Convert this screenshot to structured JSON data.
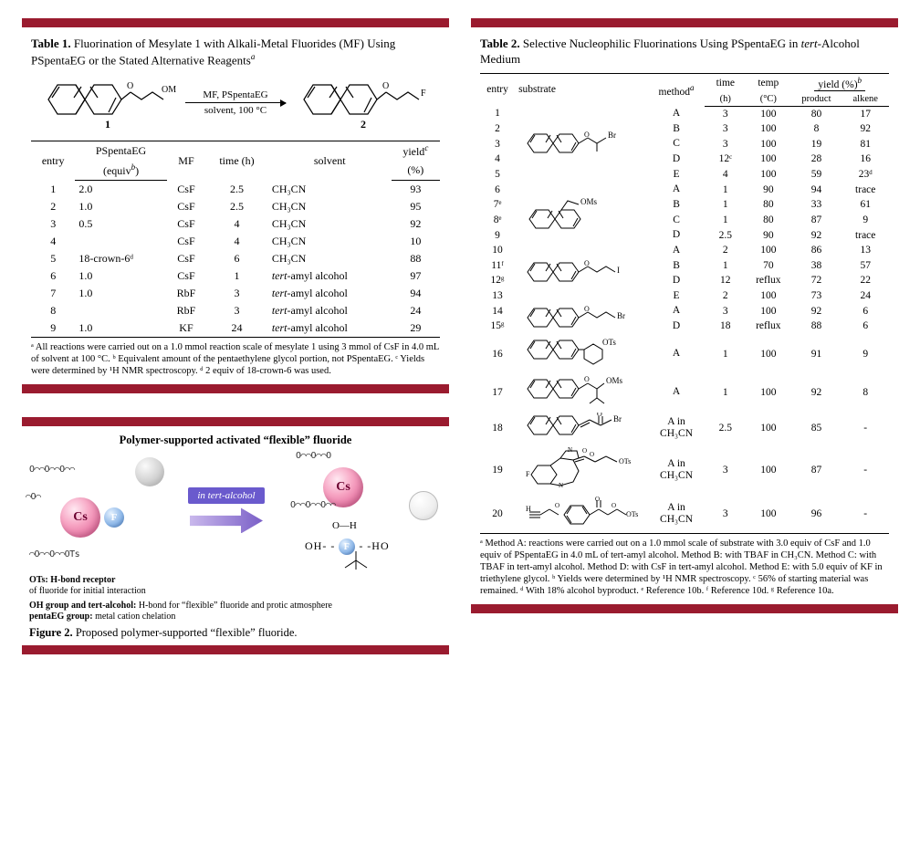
{
  "colors": {
    "panel_border": "#9a1b2f",
    "background": "#ffffff",
    "text": "#000000",
    "arrow_gradient_start": "#c9b8ec",
    "arrow_gradient_end": "#7a5fc7",
    "pill_bg": "#6a5acd",
    "cs_gradient": [
      "#ffe9f2",
      "#f7a6c4",
      "#d84a86"
    ],
    "f_gradient": [
      "#e6f2ff",
      "#8fb8e8",
      "#2e5c9a"
    ]
  },
  "table1": {
    "title_prefix": "Table 1.",
    "title_body": " Fluorination of Mesylate 1 with Alkali-Metal Fluorides (MF) Using PSpentaEG or the Stated Alternative Reagents",
    "title_sup": "a",
    "scheme": {
      "sm_group": "OMs",
      "product_group": "F",
      "label_sm": "1",
      "label_prod": "2",
      "top": "MF, PSpentaEG",
      "bottom": "solvent, 100 °C"
    },
    "headers": {
      "entry": "entry",
      "pseg": "PSpentaEG",
      "pseg_sub": "(equiv",
      "pseg_sup": "b",
      "pseg_close": ")",
      "mf": "MF",
      "time": "time (h)",
      "solvent": "solvent",
      "yield": "yield",
      "yield_sup": "c",
      "yield_unit": "(%)"
    },
    "rows": [
      {
        "entry": "1",
        "pseg": "2.0",
        "mf": "CsF",
        "time": "2.5",
        "solvent": "CH₃CN",
        "yield": "93"
      },
      {
        "entry": "2",
        "pseg": "1.0",
        "mf": "CsF",
        "time": "2.5",
        "solvent": "CH₃CN",
        "yield": "95"
      },
      {
        "entry": "3",
        "pseg": "0.5",
        "mf": "CsF",
        "time": "4",
        "solvent": "CH₃CN",
        "yield": "92"
      },
      {
        "entry": "4",
        "pseg": "",
        "mf": "CsF",
        "time": "4",
        "solvent": "CH₃CN",
        "yield": "10"
      },
      {
        "entry": "5",
        "pseg": "18-crown-6ᵈ",
        "mf": "CsF",
        "time": "6",
        "solvent": "CH₃CN",
        "yield": "88"
      },
      {
        "entry": "6",
        "pseg": "1.0",
        "mf": "CsF",
        "time": "1",
        "solvent": "tert-amyl alcohol",
        "yield": "97",
        "ital": true
      },
      {
        "entry": "7",
        "pseg": "1.0",
        "mf": "RbF",
        "time": "3",
        "solvent": "tert-amyl alcohol",
        "yield": "94",
        "ital": true
      },
      {
        "entry": "8",
        "pseg": "",
        "mf": "RbF",
        "time": "3",
        "solvent": "tert-amyl alcohol",
        "yield": "24",
        "ital": true
      },
      {
        "entry": "9",
        "pseg": "1.0",
        "mf": "KF",
        "time": "24",
        "solvent": "tert-amyl alcohol",
        "yield": "29",
        "ital": true
      }
    ],
    "footnote": "ᵃ All reactions were carried out on a 1.0 mmol reaction scale of mesylate 1 using 3 mmol of CsF in 4.0 mL of solvent at 100 °C. ᵇ Equivalent amount of the pentaethylene glycol portion, not PSpentaEG. ᶜ Yields were determined by ¹H NMR spectroscopy. ᵈ 2 equiv of 18-crown-6 was used."
  },
  "figure2": {
    "headline": "Polymer-supported activated “flexible” fluoride",
    "pill": "in tert-alcohol",
    "left_top": "O",
    "cs": "Cs",
    "f": "F",
    "ann_left_title": "OTs: H-bond receptor",
    "ann_left_body": "of fluoride for initial interaction",
    "ann_bl_title": "OH group and tert-alcohol:",
    "ann_bl_body": " H-bond for “flexible” fluoride and protic atmosphere",
    "ann_pent_title": "pentaEG group:",
    "ann_pent_body": " metal cation chelation",
    "hbond": "OH- - F - -HO",
    "caption_prefix": "Figure 2.",
    "caption_body": " Proposed polymer-supported “flexible” fluoride."
  },
  "table2": {
    "title_prefix": "Table 2.",
    "title_body": " Selective Nucleophilic Fluorinations Using PSpentaEG in tert-Alcohol Medium",
    "title_ital": "tert",
    "headers": {
      "entry": "entry",
      "substrate": "substrate",
      "method": "method",
      "method_sup": "a",
      "time": "time",
      "time_unit": "(h)",
      "temp": "temp",
      "temp_unit": "(°C)",
      "yield": "yield (%)",
      "yield_sup": "b",
      "product": "product",
      "alkene": "alkene"
    },
    "groups": [
      {
        "structure": "naph-O-CH(CH3)-Br (2-naphthyl secondary bromide)",
        "leaving": "Br",
        "rows": [
          {
            "entry": "1",
            "method": "A",
            "time": "3",
            "temp": "100",
            "product": "80",
            "alkene": "17"
          },
          {
            "entry": "2",
            "method": "B",
            "time": "3",
            "temp": "100",
            "product": "8",
            "alkene": "92"
          },
          {
            "entry": "3",
            "method": "C",
            "time": "3",
            "temp": "100",
            "product": "19",
            "alkene": "81"
          },
          {
            "entry": "4",
            "method": "D",
            "time": "12ᶜ",
            "temp": "100",
            "product": "28",
            "alkene": "16"
          },
          {
            "entry": "5",
            "method": "E",
            "time": "4",
            "temp": "100",
            "product": "59",
            "alkene": "23ᵈ"
          }
        ]
      },
      {
        "structure": "1-naphthyl-CH2CH2-OMs",
        "leaving": "OMs",
        "rows": [
          {
            "entry": "6",
            "method": "A",
            "time": "1",
            "temp": "90",
            "product": "94",
            "alkene": "trace"
          },
          {
            "entry": "7ᵉ",
            "method": "B",
            "time": "1",
            "temp": "80",
            "product": "33",
            "alkene": "61"
          },
          {
            "entry": "8ᵉ",
            "method": "C",
            "time": "1",
            "temp": "80",
            "product": "87",
            "alkene": "9"
          },
          {
            "entry": "9",
            "method": "D",
            "time": "2.5",
            "temp": "90",
            "product": "92",
            "alkene": "trace"
          }
        ]
      },
      {
        "structure": "2-naphthyl-O-(CH2)3-I",
        "leaving": "I",
        "rows": [
          {
            "entry": "10",
            "method": "A",
            "time": "2",
            "temp": "100",
            "product": "86",
            "alkene": "13"
          },
          {
            "entry": "11ᶠ",
            "method": "B",
            "time": "1",
            "temp": "70",
            "product": "38",
            "alkene": "57"
          },
          {
            "entry": "12ᵍ",
            "method": "D",
            "time": "12",
            "temp": "reflux",
            "product": "72",
            "alkene": "22"
          },
          {
            "entry": "13",
            "method": "E",
            "time": "2",
            "temp": "100",
            "product": "73",
            "alkene": "24"
          }
        ]
      },
      {
        "structure": "2-naphthyl-O-(CH2)3-Br",
        "leaving": "Br",
        "rows": [
          {
            "entry": "14",
            "method": "A",
            "time": "3",
            "temp": "100",
            "product": "92",
            "alkene": "6"
          },
          {
            "entry": "15ᵍ",
            "method": "D",
            "time": "18",
            "temp": "reflux",
            "product": "88",
            "alkene": "6"
          }
        ]
      },
      {
        "structure": "2-naphthyl cyclohexyl OTs",
        "leaving": "OTs",
        "rows": [
          {
            "entry": "16",
            "method": "A",
            "time": "1",
            "temp": "100",
            "product": "91",
            "alkene": "9"
          }
        ]
      },
      {
        "structure": "2-naphthyl branched OMs",
        "leaving": "OMs",
        "rows": [
          {
            "entry": "17",
            "method": "A",
            "time": "1",
            "temp": "100",
            "product": "92",
            "alkene": "8"
          }
        ]
      },
      {
        "structure": "2-naphthyl enone-CH2Br",
        "leaving": "Br",
        "rows": [
          {
            "entry": "18",
            "method": "A in CH₃CN",
            "time": "2.5",
            "temp": "100",
            "product": "85",
            "alkene": "-"
          }
        ]
      },
      {
        "structure": "Flumazenil-type benzodiazepine-OTs",
        "leaving": "OTs",
        "rows": [
          {
            "entry": "19",
            "method": "A in CH₃CN",
            "time": "3",
            "temp": "100",
            "product": "87",
            "alkene": "-"
          }
        ]
      },
      {
        "structure": "Propargyl-aryl-OTs",
        "leaving": "OTs",
        "rows": [
          {
            "entry": "20",
            "method": "A in CH₃CN",
            "time": "3",
            "temp": "100",
            "product": "96",
            "alkene": "-"
          }
        ]
      }
    ],
    "footnote": "ᵃ Method A: reactions were carried out on a 1.0 mmol scale of substrate with 3.0 equiv of CsF and 1.0 equiv of PSpentaEG in 4.0 mL of tert-amyl alcohol. Method B: with TBAF in CH₃CN. Method C: with TBAF in tert-amyl alcohol. Method D: with CsF in tert-amyl alcohol. Method E: with 5.0 equiv of KF in triethylene glycol. ᵇ Yields were determined by ¹H NMR spectroscopy. ᶜ 56% of starting material was remained. ᵈ With 18% alcohol byproduct. ᵉ Reference 10b. ᶠ Reference 10d. ᵍ Reference 10a."
  }
}
